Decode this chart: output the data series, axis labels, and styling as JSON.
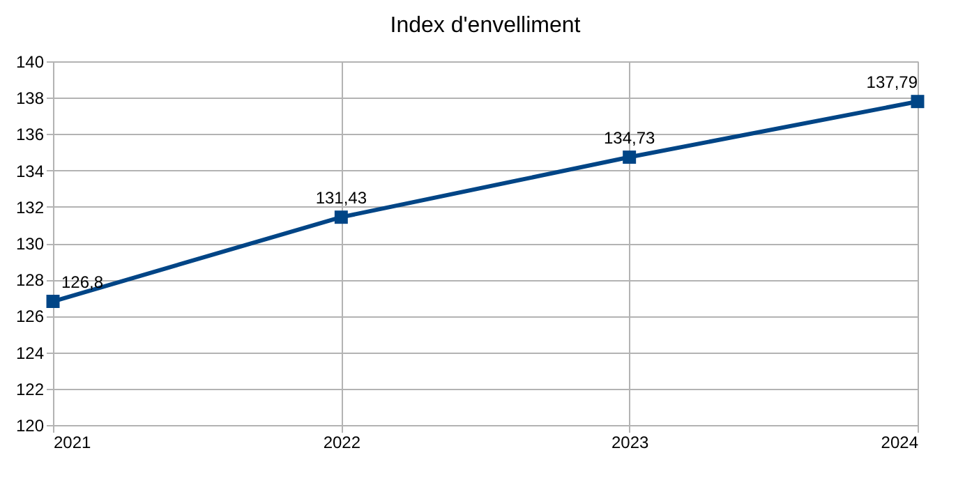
{
  "chart_data": {
    "type": "line",
    "title": "Index d'envelliment",
    "x": [
      2021,
      2022,
      2023,
      2024
    ],
    "series": [
      {
        "color": "#004586",
        "values": [
          126.8,
          131.43,
          134.73,
          137.79
        ],
        "value_labels": [
          "126,8",
          "131,43",
          "134,73",
          "137,79"
        ]
      }
    ],
    "xlim": [
      2021,
      2024
    ],
    "xticks": [
      2021,
      2022,
      2023,
      2024
    ],
    "ylim": [
      120,
      140
    ],
    "yticks": [
      120,
      122,
      124,
      126,
      128,
      130,
      132,
      134,
      136,
      138,
      140
    ],
    "grid": true,
    "marker": "square",
    "line_style": "solid"
  }
}
